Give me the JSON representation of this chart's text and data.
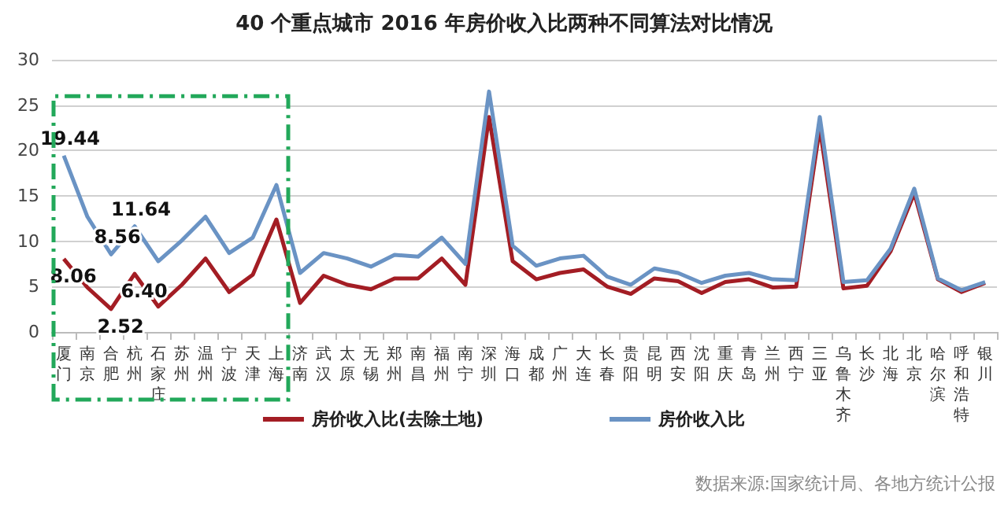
{
  "chart_data": {
    "type": "line",
    "title": "40 个重点城市 2016 年房价收入比两种不同算法对比情况",
    "categories": [
      "厦门",
      "南京",
      "合肥",
      "杭州",
      "石家庄",
      "苏州",
      "温州",
      "宁波",
      "天津",
      "上海",
      "济南",
      "武汉",
      "太原",
      "无锡",
      "郑州",
      "南昌",
      "福州",
      "南宁",
      "深圳",
      "海口",
      "成都",
      "广州",
      "大连",
      "长春",
      "贵阳",
      "昆明",
      "西安",
      "沈阳",
      "重庆",
      "青岛",
      "兰州",
      "西宁",
      "三亚",
      "乌鲁木齐",
      "长沙",
      "北海",
      "北京",
      "哈尔滨",
      "呼和浩特",
      "银川"
    ],
    "series": [
      {
        "name": "房价收入比(去除土地)",
        "color": "#a31d24",
        "values": [
          8.06,
          4.9,
          2.52,
          6.4,
          2.8,
          5.2,
          8.1,
          4.4,
          6.3,
          12.4,
          3.2,
          6.2,
          5.2,
          4.7,
          5.9,
          5.9,
          8.1,
          5.2,
          23.7,
          7.8,
          5.8,
          6.5,
          6.9,
          5.0,
          4.2,
          5.9,
          5.6,
          4.3,
          5.5,
          5.8,
          4.9,
          5.0,
          22.5,
          4.8,
          5.1,
          8.9,
          15.3,
          5.8,
          4.4,
          5.4
        ],
        "value_labels": [
          "8.06",
          null,
          "2.52",
          "6.40",
          null,
          null,
          null,
          null,
          null,
          null,
          null,
          null,
          null,
          null,
          null,
          null,
          null,
          null,
          null,
          null,
          null,
          null,
          null,
          null,
          null,
          null,
          null,
          null,
          null,
          null,
          null,
          null,
          null,
          null,
          null,
          null,
          null,
          null,
          null,
          null
        ]
      },
      {
        "name": "房价收入比",
        "color": "#6a93c4",
        "values": [
          19.44,
          12.7,
          8.56,
          11.64,
          7.8,
          10.1,
          12.7,
          8.7,
          10.4,
          16.2,
          6.5,
          8.7,
          8.1,
          7.2,
          8.5,
          8.3,
          10.4,
          7.5,
          26.5,
          9.5,
          7.3,
          8.1,
          8.4,
          6.1,
          5.2,
          7.0,
          6.5,
          5.4,
          6.2,
          6.5,
          5.8,
          5.7,
          23.7,
          5.5,
          5.7,
          9.2,
          15.8,
          5.9,
          4.6,
          5.5
        ],
        "value_labels": [
          "19.44",
          null,
          "8.56",
          "11.64",
          null,
          null,
          null,
          null,
          null,
          null,
          null,
          null,
          null,
          null,
          null,
          null,
          null,
          null,
          null,
          null,
          null,
          null,
          null,
          null,
          null,
          null,
          null,
          null,
          null,
          null,
          null,
          null,
          null,
          null,
          null,
          null,
          null,
          null,
          null,
          null
        ]
      }
    ],
    "ylim": [
      0,
      30
    ],
    "yticks": [
      0,
      5,
      10,
      15,
      20,
      25,
      30
    ],
    "grid": "y",
    "legend": "bottom",
    "marker": "none",
    "line_style": "solid",
    "annotations": [
      "数据来源:国家统计局、各地方统计公报"
    ]
  }
}
